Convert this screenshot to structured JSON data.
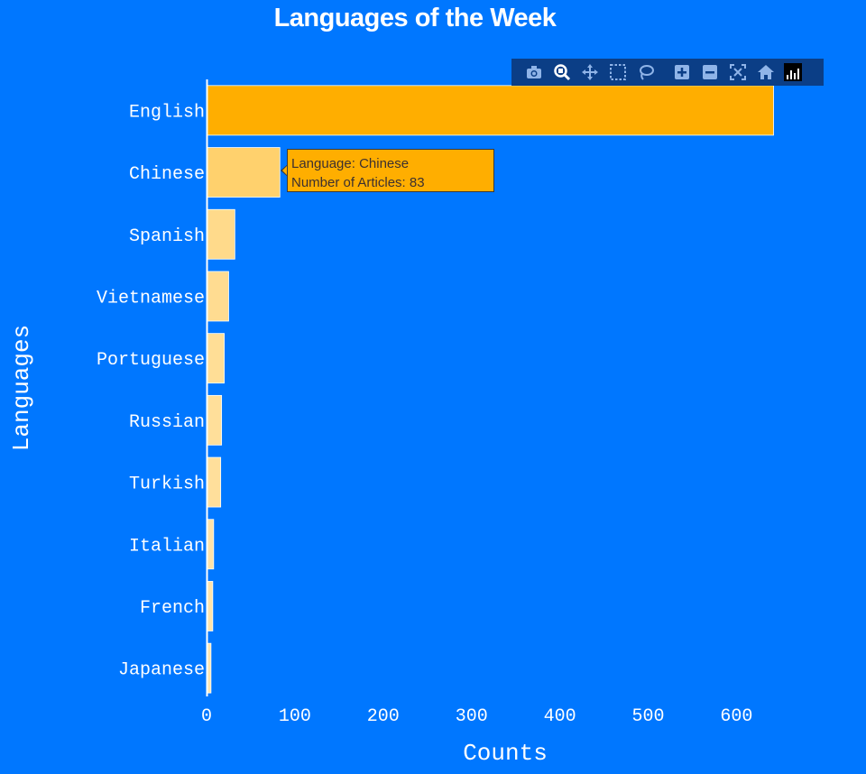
{
  "chart_data": {
    "type": "bar",
    "orientation": "horizontal",
    "title": "Languages of the Week",
    "xlabel": "Counts",
    "ylabel": "Languages",
    "categories": [
      "English",
      "Chinese",
      "Spanish",
      "Vietnamese",
      "Portuguese",
      "Russian",
      "Turkish",
      "Italian",
      "French",
      "Japanese"
    ],
    "values": [
      642,
      83,
      32,
      25,
      20,
      17,
      16,
      8,
      7,
      5
    ],
    "xlim": [
      0,
      700
    ],
    "xticks": [
      0,
      100,
      200,
      300,
      400,
      500,
      600
    ],
    "xtick_labels": [
      "0",
      "100",
      "200",
      "300",
      "400",
      "500",
      "600"
    ],
    "grid": false,
    "colors": {
      "bar_high": "#ffae00",
      "bar_low": "#fff2d6",
      "background": "#0077ff",
      "text": "#ffffff"
    }
  },
  "tooltip": {
    "line1": "Language: Chinese",
    "line2": "Number of Articles: 83"
  },
  "modebar": {
    "icons": [
      "camera-icon",
      "zoom-icon",
      "pan-icon",
      "box-select-icon",
      "lasso-icon",
      "zoom-in-icon",
      "zoom-out-icon",
      "autoscale-icon",
      "home-icon",
      "plotly-logo-icon"
    ]
  }
}
